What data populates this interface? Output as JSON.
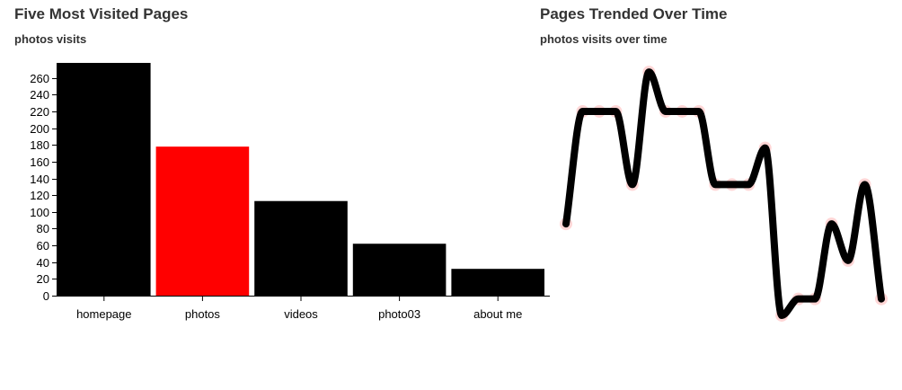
{
  "colors": {
    "bar": "#000000",
    "highlight": "#ff0000",
    "line": "#000000",
    "point_halo": "#ffd6d6"
  },
  "chart_data": [
    {
      "type": "bar",
      "title": "Five Most Visited Pages",
      "subtitle": "photos visits",
      "categories": [
        "homepage",
        "photos",
        "videos",
        "photo03",
        "about me"
      ],
      "values": [
        278,
        178,
        113,
        62,
        32
      ],
      "highlighted_category": "photos",
      "ylim": [
        0,
        278
      ],
      "yticks": [
        0,
        20,
        40,
        60,
        80,
        100,
        120,
        140,
        160,
        180,
        200,
        220,
        240,
        260
      ],
      "xlabel": "",
      "ylabel": "",
      "grid": false,
      "legend": "none"
    },
    {
      "type": "line",
      "title": "Pages Trended Over Time",
      "subtitle": "photos visits over time",
      "values": [
        102,
        225,
        225,
        225,
        145,
        268,
        225,
        225,
        225,
        145,
        145,
        145,
        185,
        2,
        20,
        20,
        102,
        62,
        145,
        20
      ],
      "ylim": [
        0,
        278
      ],
      "axes": "hidden",
      "grid": false,
      "legend": "none"
    }
  ]
}
